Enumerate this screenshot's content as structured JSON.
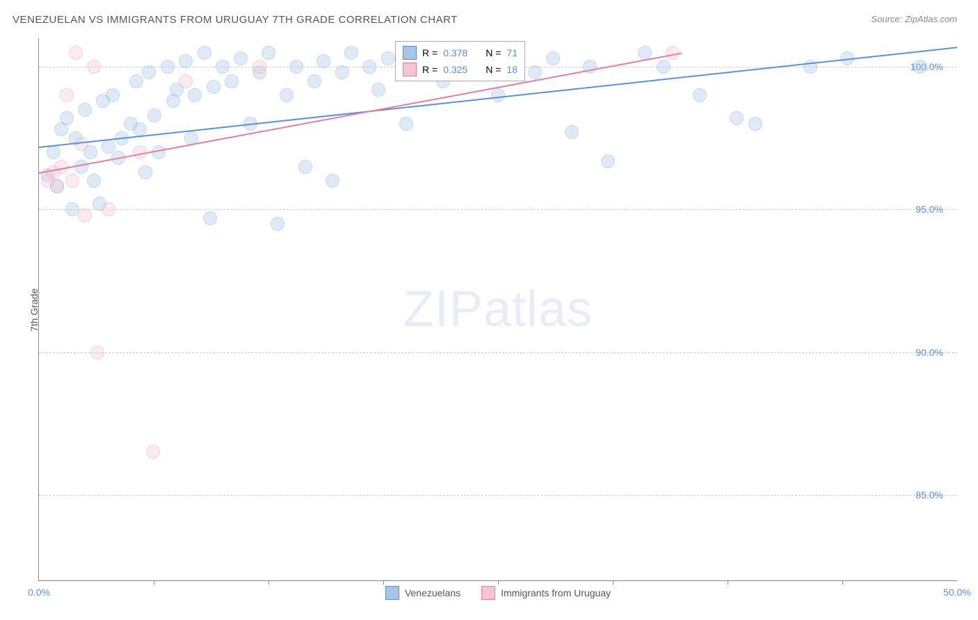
{
  "title": "VENEZUELAN VS IMMIGRANTS FROM URUGUAY 7TH GRADE CORRELATION CHART",
  "source": "Source: ZipAtlas.com",
  "y_axis_label": "7th Grade",
  "watermark": {
    "zip": "ZIP",
    "atlas": "atlas"
  },
  "chart": {
    "type": "scatter-correlation",
    "xlim": [
      0,
      50
    ],
    "ylim": [
      82,
      101
    ],
    "x_ticks": [
      0,
      50
    ],
    "x_tick_labels": [
      "0.0%",
      "50.0%"
    ],
    "x_minor_ticks": [
      6.25,
      12.5,
      18.75,
      25,
      31.25,
      37.5,
      43.75
    ],
    "y_ticks": [
      85,
      90,
      95,
      100
    ],
    "y_tick_labels": [
      "85.0%",
      "90.0%",
      "95.0%",
      "100.0%"
    ],
    "background_color": "#ffffff",
    "grid_color": "#cccccc",
    "axis_color": "#888888",
    "tick_label_color": "#5b8fd6",
    "point_radius": 9,
    "point_opacity": 0.35,
    "series": [
      {
        "name": "Venezuelans",
        "color_fill": "#a8c5e8",
        "color_stroke": "#5b8fd6",
        "r_value": "0.378",
        "n_value": "71",
        "trend": {
          "x1": 0,
          "y1": 97.2,
          "x2": 50,
          "y2": 100.7
        },
        "points": [
          [
            0.5,
            96.2
          ],
          [
            0.8,
            97.0
          ],
          [
            1.0,
            95.8
          ],
          [
            1.2,
            97.8
          ],
          [
            1.5,
            98.2
          ],
          [
            1.8,
            95.0
          ],
          [
            2.0,
            97.5
          ],
          [
            2.3,
            96.5
          ],
          [
            2.5,
            98.5
          ],
          [
            2.8,
            97.0
          ],
          [
            3.0,
            96.0
          ],
          [
            3.3,
            95.2
          ],
          [
            3.5,
            98.8
          ],
          [
            3.8,
            97.2
          ],
          [
            4.0,
            99.0
          ],
          [
            4.3,
            96.8
          ],
          [
            4.5,
            97.5
          ],
          [
            5.0,
            98.0
          ],
          [
            5.3,
            99.5
          ],
          [
            5.5,
            97.8
          ],
          [
            5.8,
            96.3
          ],
          [
            6.0,
            99.8
          ],
          [
            6.3,
            98.3
          ],
          [
            6.5,
            97.0
          ],
          [
            7.0,
            100.0
          ],
          [
            7.3,
            98.8
          ],
          [
            7.5,
            99.2
          ],
          [
            8.0,
            100.2
          ],
          [
            8.3,
            97.5
          ],
          [
            8.5,
            99.0
          ],
          [
            9.0,
            100.5
          ],
          [
            9.3,
            94.7
          ],
          [
            9.5,
            99.3
          ],
          [
            10.0,
            100.0
          ],
          [
            10.5,
            99.5
          ],
          [
            11.0,
            100.3
          ],
          [
            11.5,
            98.0
          ],
          [
            12.0,
            99.8
          ],
          [
            12.5,
            100.5
          ],
          [
            13.0,
            94.5
          ],
          [
            13.5,
            99.0
          ],
          [
            14.0,
            100.0
          ],
          [
            14.5,
            96.5
          ],
          [
            15.0,
            99.5
          ],
          [
            15.5,
            100.2
          ],
          [
            16.0,
            96.0
          ],
          [
            16.5,
            99.8
          ],
          [
            17.0,
            100.5
          ],
          [
            18.0,
            100.0
          ],
          [
            18.5,
            99.2
          ],
          [
            19.0,
            100.3
          ],
          [
            20.0,
            98.0
          ],
          [
            21.0,
            100.0
          ],
          [
            22.0,
            99.5
          ],
          [
            23.0,
            100.2
          ],
          [
            24.0,
            100.5
          ],
          [
            25.0,
            99.0
          ],
          [
            26.0,
            100.0
          ],
          [
            27.0,
            99.8
          ],
          [
            28.0,
            100.3
          ],
          [
            29.0,
            97.7
          ],
          [
            30.0,
            100.0
          ],
          [
            31.0,
            96.7
          ],
          [
            33.0,
            100.5
          ],
          [
            34.0,
            100.0
          ],
          [
            36.0,
            99.0
          ],
          [
            38.0,
            98.2
          ],
          [
            39.0,
            98.0
          ],
          [
            42.0,
            100.0
          ],
          [
            44.0,
            100.3
          ],
          [
            48.0,
            100.0
          ]
        ]
      },
      {
        "name": "Immigrants from Uruguay",
        "color_fill": "#f5c5d2",
        "color_stroke": "#e87ba0",
        "r_value": "0.325",
        "n_value": "18",
        "trend": {
          "x1": 0,
          "y1": 96.3,
          "x2": 35,
          "y2": 100.5
        },
        "points": [
          [
            0.5,
            96.0
          ],
          [
            0.8,
            96.3
          ],
          [
            1.0,
            95.8
          ],
          [
            1.2,
            96.5
          ],
          [
            1.5,
            99.0
          ],
          [
            1.8,
            96.0
          ],
          [
            2.0,
            100.5
          ],
          [
            2.3,
            97.3
          ],
          [
            2.5,
            94.8
          ],
          [
            3.0,
            100.0
          ],
          [
            3.2,
            90.0
          ],
          [
            3.8,
            95.0
          ],
          [
            5.5,
            97.0
          ],
          [
            6.2,
            86.5
          ],
          [
            8.0,
            99.5
          ],
          [
            12.0,
            100.0
          ],
          [
            23.0,
            100.3
          ],
          [
            34.5,
            100.5
          ]
        ]
      }
    ],
    "legend_top": {
      "r_prefix": "R = ",
      "n_prefix": "N = "
    },
    "legend_bottom": [
      {
        "label": "Venezuelans",
        "fill": "#a8c5e8",
        "stroke": "#5b8fd6"
      },
      {
        "label": "Immigrants from Uruguay",
        "fill": "#f5c5d2",
        "stroke": "#e87ba0"
      }
    ]
  }
}
